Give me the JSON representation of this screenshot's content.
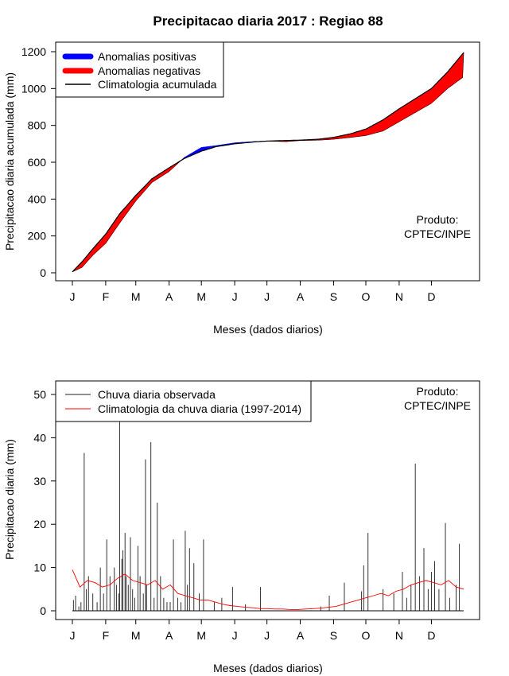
{
  "chart_data": [
    {
      "type": "area",
      "title": "Precipitacao diaria 2017 : Regiao 88",
      "xlabel": "Meses (dados diarios)",
      "ylabel": "Precipitacao diaria acumulada (mm)",
      "xlim": [
        1,
        365
      ],
      "ylim": [
        0,
        1200
      ],
      "yticks": [
        0,
        200,
        400,
        600,
        800,
        1000,
        1200
      ],
      "months": [
        "J",
        "F",
        "M",
        "A",
        "M",
        "J",
        "J",
        "A",
        "S",
        "O",
        "N",
        "D"
      ],
      "month_days": [
        1,
        32,
        60,
        91,
        121,
        152,
        182,
        213,
        244,
        274,
        305,
        335
      ],
      "legend": [
        {
          "label": "Anomalias positivas",
          "color": "#0000ff"
        },
        {
          "label": "Anomalias negativas",
          "color": "#ff0000"
        },
        {
          "label": "Climatologia acumulada",
          "color": "#000000"
        }
      ],
      "annotation": [
        "Produto:",
        "CPTEC/INPE"
      ],
      "climatology_cumulative": {
        "day": [
          1,
          10,
          20,
          32,
          45,
          60,
          75,
          91,
          105,
          121,
          135,
          152,
          170,
          182,
          200,
          213,
          230,
          244,
          260,
          274,
          290,
          305,
          320,
          335,
          350,
          365
        ],
        "value": [
          5,
          60,
          130,
          210,
          320,
          420,
          510,
          570,
          620,
          660,
          685,
          700,
          710,
          715,
          718,
          720,
          725,
          735,
          755,
          780,
          830,
          890,
          945,
          1000,
          1090,
          1195
        ]
      },
      "observed_cumulative": {
        "day": [
          1,
          10,
          20,
          32,
          45,
          60,
          75,
          91,
          105,
          121,
          135,
          152,
          170,
          182,
          200,
          213,
          230,
          244,
          260,
          274,
          290,
          305,
          320,
          335,
          350,
          364,
          365
        ],
        "value": [
          5,
          30,
          95,
          160,
          270,
          390,
          490,
          550,
          625,
          680,
          690,
          705,
          712,
          715,
          712,
          718,
          720,
          725,
          735,
          745,
          770,
          820,
          870,
          920,
          1000,
          1060,
          1195
        ]
      }
    },
    {
      "type": "bar",
      "xlabel": "Meses (dados diarios)",
      "ylabel": "Precipitacao diaria (mm)",
      "xlim": [
        1,
        365
      ],
      "ylim": [
        0,
        53
      ],
      "yticks": [
        0,
        10,
        20,
        30,
        40,
        50
      ],
      "months": [
        "J",
        "F",
        "M",
        "A",
        "M",
        "J",
        "J",
        "A",
        "S",
        "O",
        "N",
        "D"
      ],
      "month_days": [
        1,
        32,
        60,
        91,
        121,
        152,
        182,
        213,
        244,
        274,
        305,
        335
      ],
      "legend": [
        {
          "label": "Chuva diaria observada",
          "color": "#000000"
        },
        {
          "label": "Climatologia da chuva diaria (1997-2014)",
          "color": "#ff0000"
        }
      ],
      "annotation": [
        "Produto:",
        "CPTEC/INPE"
      ],
      "observed_daily": {
        "day": [
          2,
          4,
          7,
          9,
          12,
          14,
          16,
          20,
          24,
          27,
          30,
          33,
          36,
          40,
          42,
          44,
          45,
          47,
          48,
          50,
          51,
          53,
          55,
          57,
          59,
          62,
          64,
          67,
          69,
          70,
          74,
          77,
          80,
          83,
          86,
          89,
          92,
          95,
          99,
          102,
          106,
          108,
          110,
          114,
          119,
          123,
          133,
          140,
          150,
          162,
          176,
          232,
          240,
          254,
          270,
          272,
          276,
          290,
          300,
          308,
          312,
          316,
          320,
          324,
          328,
          332,
          335,
          338,
          342,
          348,
          352,
          358,
          361
        ],
        "value": [
          2.5,
          3.5,
          1,
          2,
          36.5,
          5,
          8,
          4,
          2,
          10,
          4,
          16.5,
          8,
          10,
          6,
          4,
          44,
          12,
          14,
          18,
          8,
          6,
          17,
          5,
          3,
          15,
          8,
          4,
          35,
          6,
          39,
          3,
          25,
          8,
          3,
          2,
          2,
          16.5,
          3,
          2,
          18.5,
          6,
          14.5,
          11,
          4,
          16.5,
          2,
          3,
          5.5,
          1.5,
          5.5,
          1,
          3.5,
          6.5,
          4.5,
          10.5,
          18,
          5,
          4,
          9,
          3,
          6,
          34,
          8,
          14.5,
          5,
          9,
          11.5,
          5,
          20.3,
          3,
          6,
          15.5
        ]
      },
      "climatology_daily": {
        "day": [
          1,
          8,
          15,
          22,
          29,
          36,
          43,
          50,
          57,
          64,
          71,
          78,
          85,
          92,
          99,
          106,
          113,
          120,
          127,
          134,
          141,
          148,
          155,
          162,
          169,
          176,
          183,
          190,
          197,
          204,
          211,
          218,
          225,
          232,
          239,
          246,
          253,
          260,
          267,
          274,
          281,
          288,
          295,
          302,
          309,
          316,
          323,
          330,
          337,
          344,
          351,
          358,
          365
        ],
        "value": [
          9.5,
          5.5,
          7,
          6.5,
          5.5,
          6,
          7.5,
          8.5,
          7,
          6.5,
          6,
          7,
          5,
          6,
          4,
          3.5,
          3,
          2.5,
          2.5,
          2,
          1.5,
          1.2,
          1,
          0.8,
          0.7,
          0.5,
          0.5,
          0.4,
          0.4,
          0.3,
          0.3,
          0.4,
          0.5,
          0.6,
          0.8,
          1,
          1.5,
          2,
          2.5,
          3,
          3.5,
          4,
          3.5,
          4.5,
          5,
          6,
          6.5,
          7,
          6.5,
          6,
          7,
          5.5,
          5
        ]
      }
    }
  ]
}
